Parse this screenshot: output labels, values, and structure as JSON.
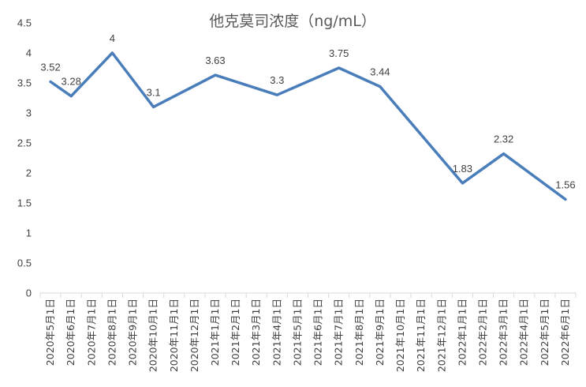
{
  "chart_data": {
    "type": "line",
    "title": "他克莫司浓度（ng/mL）",
    "xlabel": "",
    "ylabel": "",
    "ylim": [
      0,
      4.5
    ],
    "yticks": [
      "0",
      "0.5",
      "1",
      "1.5",
      "2",
      "2.5",
      "3",
      "3.5",
      "4",
      "4.5"
    ],
    "grid": false,
    "categories": [
      "2020年5月1日",
      "2020年6月1日",
      "2020年7月1日",
      "2020年8月1日",
      "2020年9月1日",
      "2020年10月1日",
      "2020年11月1日",
      "2020年12月1日",
      "2021年1月1日",
      "2021年2月1日",
      "2021年3月1日",
      "2021年4月1日",
      "2021年5月1日",
      "2021年6月1日",
      "2021年7月1日",
      "2021年8月1日",
      "2021年9月1日",
      "2021年10月1日",
      "2021年11月1日",
      "2021年12月1日",
      "2022年1月1日",
      "2022年2月1日",
      "2022年3月1日",
      "2022年4月1日",
      "2022年5月1日",
      "2022年6月1日"
    ],
    "points": [
      {
        "x": "2020年5月1日",
        "y": 3.52,
        "label": "3.52"
      },
      {
        "x": "2020年6月1日",
        "y": 3.28,
        "label": "3.28"
      },
      {
        "x": "2020年8月1日",
        "y": 4,
        "label": "4"
      },
      {
        "x": "2020年10月1日",
        "y": 3.1,
        "label": "3.1"
      },
      {
        "x": "2021年1月1日",
        "y": 3.63,
        "label": "3.63"
      },
      {
        "x": "2021年4月1日",
        "y": 3.3,
        "label": "3.3"
      },
      {
        "x": "2021年7月1日",
        "y": 3.75,
        "label": "3.75"
      },
      {
        "x": "2021年9月1日",
        "y": 3.44,
        "label": "3.44"
      },
      {
        "x": "2022年1月1日",
        "y": 1.83,
        "label": "1.83"
      },
      {
        "x": "2022年3月1日",
        "y": 2.32,
        "label": "2.32"
      },
      {
        "x": "2022年6月1日",
        "y": 1.56,
        "label": "1.56"
      }
    ],
    "colors": {
      "line": "#4a7ebb",
      "axis": "#d9d9d9",
      "text": "#404040",
      "title": "#595959"
    }
  }
}
